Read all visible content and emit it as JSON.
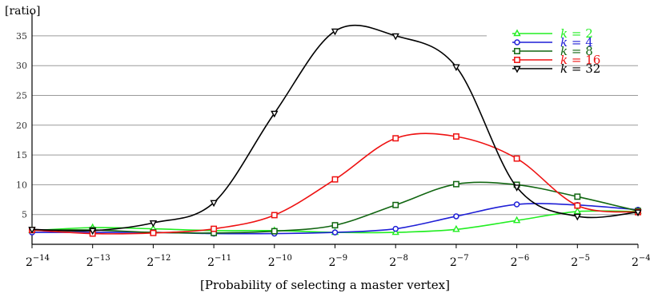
{
  "chart_data": {
    "type": "line",
    "title": "",
    "ylabel": "[ratio]",
    "xlabel": "[Probability of selecting a master vertex]",
    "x_ticks": [
      {
        "base": "2",
        "exp": "−14"
      },
      {
        "base": "2",
        "exp": "−13"
      },
      {
        "base": "2",
        "exp": "−12"
      },
      {
        "base": "2",
        "exp": "−11"
      },
      {
        "base": "2",
        "exp": "−10"
      },
      {
        "base": "2",
        "exp": "−9"
      },
      {
        "base": "2",
        "exp": "−8"
      },
      {
        "base": "2",
        "exp": "−7"
      },
      {
        "base": "2",
        "exp": "−6"
      },
      {
        "base": "2",
        "exp": "−5"
      },
      {
        "base": "2",
        "exp": "−4"
      }
    ],
    "x_exponents": [
      -14,
      -13,
      -12,
      -11,
      -10,
      -9,
      -8,
      -7,
      -6,
      -5,
      -4
    ],
    "y_ticks": [
      5,
      10,
      15,
      20,
      25,
      30,
      35
    ],
    "ylim": [
      0,
      37
    ],
    "grid": "horizontal",
    "legend_position": "top-right",
    "series": [
      {
        "name": "k = 2",
        "legend_k": "k",
        "legend_value": "2",
        "color": "#22ee22",
        "marker": "triangle-up",
        "values": [
          2.3,
          2.8,
          2.6,
          2.3,
          2.3,
          2.0,
          2.0,
          2.5,
          4.0,
          5.5,
          5.5
        ]
      },
      {
        "name": "k = 4",
        "legend_k": "k",
        "legend_value": "4",
        "color": "#1f1fd6",
        "marker": "circle",
        "values": [
          2.0,
          2.0,
          2.0,
          1.8,
          1.8,
          2.0,
          2.6,
          4.7,
          6.7,
          6.6,
          5.8
        ]
      },
      {
        "name": "k = 8",
        "legend_k": "k",
        "legend_value": "8",
        "color": "#116611",
        "marker": "square",
        "values": [
          2.4,
          2.4,
          2.0,
          1.9,
          2.2,
          3.2,
          6.6,
          10.1,
          10.0,
          8.0,
          5.6
        ]
      },
      {
        "name": "k = 16",
        "legend_k": "k",
        "legend_value": "16",
        "color": "#ee1111",
        "marker": "square",
        "values": [
          2.4,
          1.8,
          1.9,
          2.6,
          4.9,
          10.9,
          17.8,
          18.1,
          14.4,
          6.5,
          5.4
        ]
      },
      {
        "name": "k = 32",
        "legend_k": "k",
        "legend_value": "32",
        "color": "#000000",
        "marker": "triangle-down",
        "values": [
          2.5,
          2.3,
          3.6,
          7.0,
          22.0,
          35.8,
          35.0,
          29.8,
          9.6,
          4.7,
          5.4
        ]
      }
    ]
  }
}
